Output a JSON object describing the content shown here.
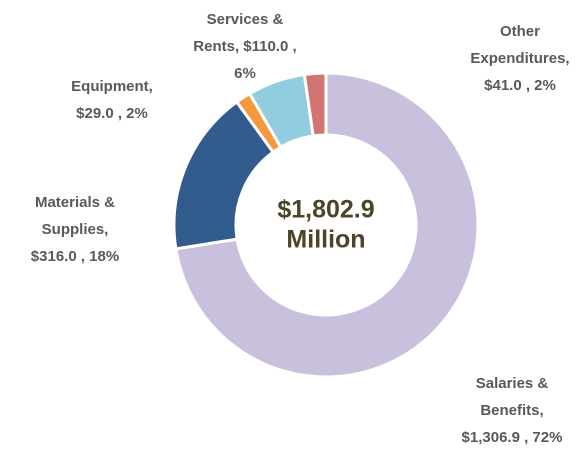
{
  "chart_data": {
    "type": "pie",
    "donut": true,
    "labels": [
      [
        "Salaries &",
        "Benefits,",
        "$1,306.9 , 72%"
      ],
      [
        "Materials &",
        "Supplies,",
        "$316.0 , 18%"
      ],
      [
        "Equipment,",
        "$29.0 , 2%"
      ],
      [
        "Services &",
        "Rents,  $110.0 ,",
        "6%"
      ],
      [
        "Other",
        "Expenditures,",
        "$41.0 , 2%"
      ]
    ],
    "values": [
      1306.9,
      316.0,
      29.0,
      110.0,
      41.0
    ],
    "colors": [
      "#c9c0dd",
      "#335c8e",
      "#f5993c",
      "#92cddf",
      "#d07474"
    ],
    "center_label": [
      "$1,802.9",
      "Million"
    ]
  }
}
